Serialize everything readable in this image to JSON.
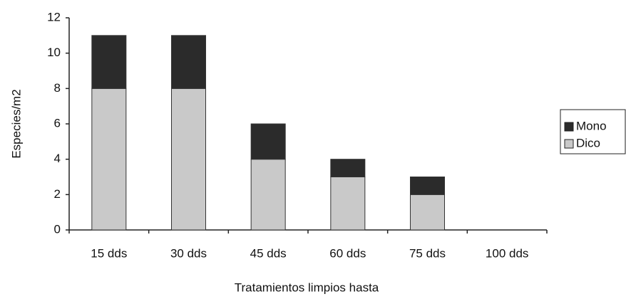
{
  "chart_data": {
    "type": "stacked_bar",
    "categories": [
      "15 dds",
      "30 dds",
      "45 dds",
      "60 dds",
      "75 dds",
      "100 dds"
    ],
    "series": [
      {
        "name": "Dico",
        "color": "#c9c9c9",
        "values": [
          8,
          8,
          4,
          3,
          2,
          0
        ]
      },
      {
        "name": "Mono",
        "color": "#2b2b2b",
        "values": [
          3,
          3,
          2,
          1,
          1,
          0
        ]
      }
    ],
    "ylim": [
      0,
      12
    ],
    "yticks": [
      0,
      2,
      4,
      6,
      8,
      10,
      12
    ],
    "y_label": "Especies/m2",
    "x_label": "Tratamientos limpios hasta",
    "legend": "right",
    "grid": false
  }
}
